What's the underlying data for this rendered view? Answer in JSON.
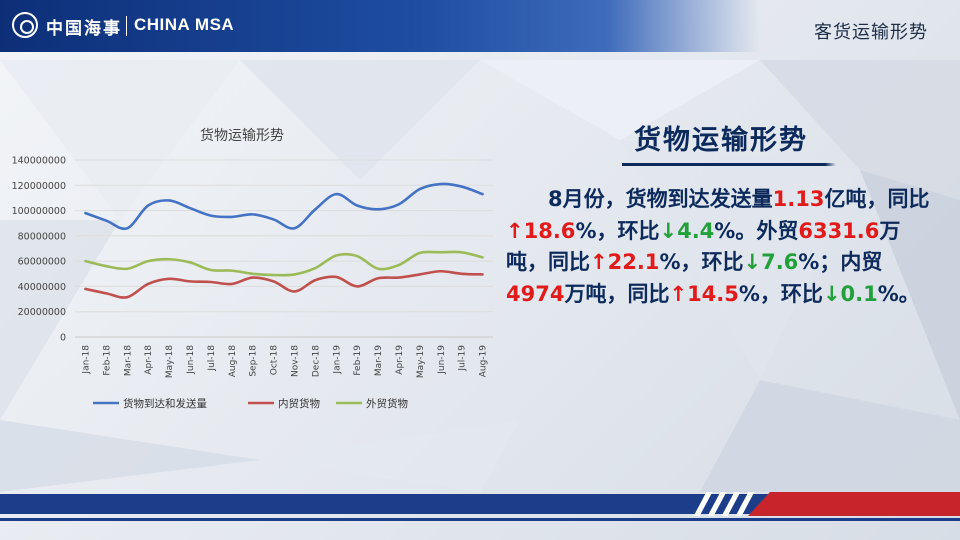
{
  "header": {
    "logo_cn": "中国海事",
    "logo_en": "CHINA MSA",
    "section_title": "客货运输形势"
  },
  "panel": {
    "title": "货物运输形势",
    "text_parts": [
      "8月份，货物到达发送量",
      "1.13",
      "亿吨，同比",
      "18.6",
      "%，环比",
      "4.4",
      "%。外贸",
      "6331.6",
      "万吨，同比",
      "22.1",
      "%，环比",
      "7.6",
      "%；内贸",
      "4974",
      "万吨，同比",
      "14.5",
      "%，环比",
      "0.1",
      "%。"
    ],
    "arrow_up": "↑",
    "arrow_down": "↓"
  },
  "chart_data": {
    "type": "line",
    "title": "货物运输形势",
    "categories": [
      "Jan-18",
      "Feb-18",
      "Mar-18",
      "Apr-18",
      "May-18",
      "Jun-18",
      "Jul-18",
      "Aug-18",
      "Sep-18",
      "Oct-18",
      "Nov-18",
      "Dec-18",
      "Jan-19",
      "Feb-19",
      "Mar-19",
      "Apr-19",
      "May-19",
      "Jun-19",
      "Jul-19",
      "Aug-19"
    ],
    "ylim": [
      0,
      140000000
    ],
    "yticks": [
      "0",
      "20000000",
      "40000000",
      "60000000",
      "80000000",
      "100000000",
      "120000000",
      "140000000"
    ],
    "grid": true,
    "legend_position": "bottom",
    "series": [
      {
        "name": "货物到达和发送量",
        "color": "#4472c4",
        "values": [
          98000000,
          92000000,
          86000000,
          104000000,
          108000000,
          102000000,
          96000000,
          95000000,
          97000000,
          93000000,
          86000000,
          101000000,
          113000000,
          104000000,
          101000000,
          105000000,
          117000000,
          121000000,
          119000000,
          113000000
        ]
      },
      {
        "name": "内贸货物",
        "color": "#c0504d",
        "values": [
          38000000,
          34500000,
          31500000,
          42000000,
          46000000,
          44000000,
          43500000,
          42000000,
          47000000,
          44000000,
          36000000,
          45000000,
          47500000,
          40000000,
          46500000,
          47000000,
          49500000,
          52000000,
          50000000,
          49500000
        ]
      },
      {
        "name": "外贸货物",
        "color": "#9bbb59",
        "values": [
          60000000,
          56000000,
          54000000,
          60000000,
          61500000,
          59000000,
          53000000,
          52500000,
          50000000,
          49000000,
          49500000,
          54500000,
          64500000,
          64000000,
          54000000,
          57000000,
          66500000,
          67000000,
          67000000,
          63000000
        ]
      }
    ]
  }
}
